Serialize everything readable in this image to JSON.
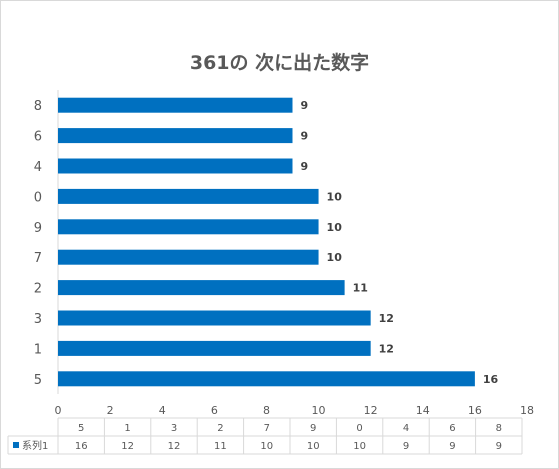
{
  "chart_data": {
    "type": "bar",
    "orientation": "horizontal",
    "title": "361の 次に出た数字",
    "categories": [
      "5",
      "1",
      "3",
      "2",
      "7",
      "9",
      "0",
      "4",
      "6",
      "8"
    ],
    "series": [
      {
        "name": "系列1",
        "values": [
          16,
          12,
          12,
          11,
          10,
          10,
          10,
          9,
          9,
          9
        ],
        "color": "#0070c0"
      }
    ],
    "xlim": [
      0,
      18
    ],
    "xticks": [
      "0",
      "2",
      "4",
      "6",
      "8",
      "10",
      "12",
      "14",
      "16",
      "18"
    ],
    "data_labels": true,
    "data_table": true,
    "legend_key_in_table": true
  }
}
